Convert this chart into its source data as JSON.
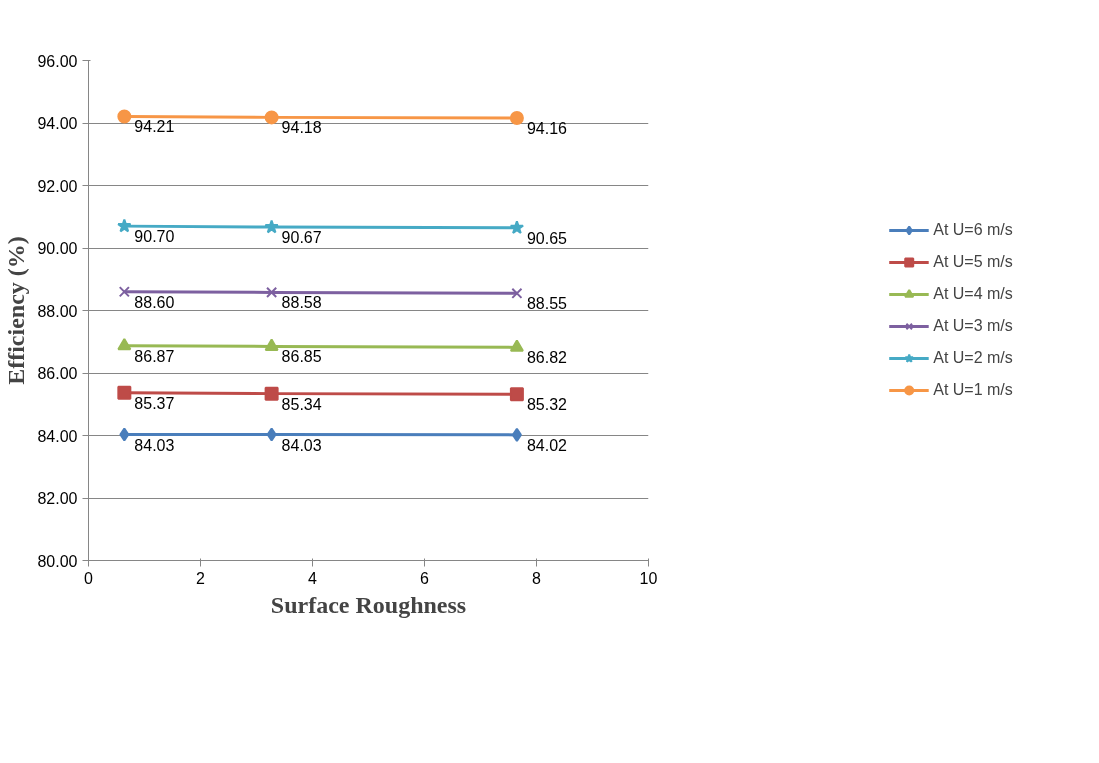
{
  "chart_data": {
    "type": "line",
    "xlabel": "Surface Roughness",
    "ylabel": "Efficiency (%)",
    "x": [
      0.64,
      3.27,
      7.65
    ],
    "xlim": [
      0,
      10
    ],
    "xticks": [
      0,
      2,
      4,
      6,
      8,
      10
    ],
    "ylim": [
      80,
      96
    ],
    "yticks": [
      {
        "value": 80,
        "label": "80.00"
      },
      {
        "value": 82,
        "label": "82.00"
      },
      {
        "value": 84,
        "label": "84.00"
      },
      {
        "value": 86,
        "label": "86.00"
      },
      {
        "value": 88,
        "label": "88.00"
      },
      {
        "value": 90,
        "label": "90.00"
      },
      {
        "value": 92,
        "label": "92.00"
      },
      {
        "value": 94,
        "label": "94.00"
      },
      {
        "value": 96,
        "label": "96.00"
      }
    ],
    "grid": "y",
    "legend": "right",
    "line_style": "solid",
    "series": [
      {
        "name": "At U=6 m/s",
        "color": "#4a7ebb",
        "marker": "diamond",
        "values": [
          84.03,
          84.03,
          84.02
        ],
        "value_labels": [
          "84.03",
          "84.03",
          "84.02"
        ]
      },
      {
        "name": "At U=5 m/s",
        "color": "#be4b48",
        "marker": "square",
        "values": [
          85.37,
          85.34,
          85.32
        ],
        "value_labels": [
          "85.37",
          "85.34",
          "85.32"
        ]
      },
      {
        "name": "At U=4 m/s",
        "color": "#98b954",
        "marker": "triangle",
        "values": [
          86.87,
          86.85,
          86.82
        ],
        "value_labels": [
          "86.87",
          "86.85",
          "86.82"
        ]
      },
      {
        "name": "At U=3 m/s",
        "color": "#7d60a0",
        "marker": "cross",
        "values": [
          88.6,
          88.58,
          88.55
        ],
        "value_labels": [
          "88.60",
          "88.58",
          "88.55"
        ]
      },
      {
        "name": "At U=2 m/s",
        "color": "#46aac5",
        "marker": "star",
        "values": [
          90.7,
          90.67,
          90.65
        ],
        "value_labels": [
          "90.70",
          "90.67",
          "90.65"
        ]
      },
      {
        "name": "At U=1 m/s",
        "color": "#f79646",
        "marker": "circle",
        "values": [
          94.21,
          94.18,
          94.16
        ],
        "value_labels": [
          "94.21",
          "94.18",
          "94.16"
        ]
      }
    ]
  }
}
